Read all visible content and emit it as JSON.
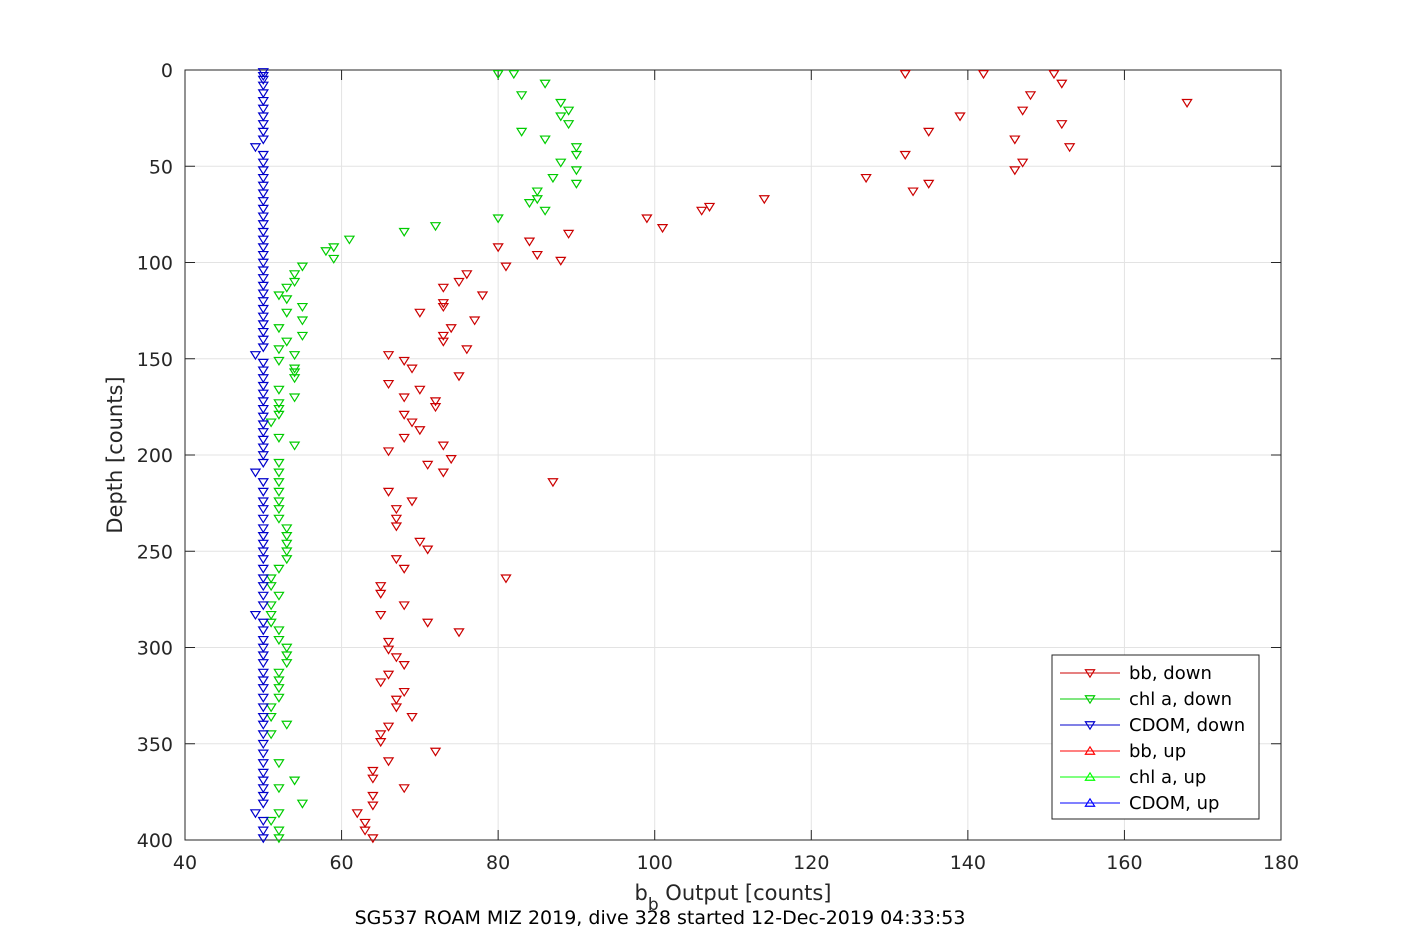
{
  "chart_data": {
    "type": "scatter",
    "xlabel_main": "b",
    "xlabel_sub": "b",
    "xlabel_rest": " Output [counts]",
    "ylabel": "Depth [counts]",
    "caption": "SG537 ROAM MIZ 2019, dive 328 started 12-Dec-2019 04:33:53",
    "xlim": [
      40,
      180
    ],
    "ylim": [
      0,
      400
    ],
    "y_reversed": true,
    "xticks": [
      40,
      60,
      80,
      100,
      120,
      140,
      160,
      180
    ],
    "yticks": [
      0,
      50,
      100,
      150,
      200,
      250,
      300,
      350,
      400
    ],
    "xtick_labels": [
      "40",
      "60",
      "80",
      "100",
      "120",
      "140",
      "160",
      "180"
    ],
    "ytick_labels": [
      "0",
      "50",
      "100",
      "150",
      "200",
      "250",
      "300",
      "350",
      "400"
    ],
    "grid": true,
    "legend_position": "bottom-right",
    "series": [
      {
        "name": "bb, down",
        "color": "#cc0000",
        "marker": "down-triangle",
        "points": [
          [
            132,
            2
          ],
          [
            142,
            2
          ],
          [
            151,
            2
          ],
          [
            152,
            7
          ],
          [
            148,
            13
          ],
          [
            168,
            17
          ],
          [
            147,
            21
          ],
          [
            139,
            24
          ],
          [
            152,
            28
          ],
          [
            135,
            32
          ],
          [
            146,
            36
          ],
          [
            153,
            40
          ],
          [
            132,
            44
          ],
          [
            147,
            48
          ],
          [
            146,
            52
          ],
          [
            127,
            56
          ],
          [
            135,
            59
          ],
          [
            133,
            63
          ],
          [
            114,
            67
          ],
          [
            107,
            71
          ],
          [
            106,
            73
          ],
          [
            99,
            77
          ],
          [
            101,
            82
          ],
          [
            89,
            85
          ],
          [
            84,
            89
          ],
          [
            80,
            92
          ],
          [
            85,
            96
          ],
          [
            88,
            99
          ],
          [
            81,
            102
          ],
          [
            76,
            106
          ],
          [
            75,
            110
          ],
          [
            73,
            113
          ],
          [
            78,
            117
          ],
          [
            73,
            121
          ],
          [
            73,
            123
          ],
          [
            70,
            126
          ],
          [
            77,
            130
          ],
          [
            74,
            134
          ],
          [
            73,
            138
          ],
          [
            73,
            141
          ],
          [
            76,
            145
          ],
          [
            66,
            148
          ],
          [
            68,
            151
          ],
          [
            69,
            155
          ],
          [
            75,
            159
          ],
          [
            66,
            163
          ],
          [
            70,
            166
          ],
          [
            68,
            170
          ],
          [
            72,
            172
          ],
          [
            72,
            175
          ],
          [
            68,
            179
          ],
          [
            69,
            183
          ],
          [
            70,
            187
          ],
          [
            68,
            191
          ],
          [
            73,
            195
          ],
          [
            66,
            198
          ],
          [
            74,
            202
          ],
          [
            71,
            205
          ],
          [
            73,
            209
          ],
          [
            87,
            214
          ],
          [
            66,
            219
          ],
          [
            69,
            224
          ],
          [
            67,
            228
          ],
          [
            67,
            233
          ],
          [
            67,
            237
          ],
          [
            70,
            245
          ],
          [
            71,
            249
          ],
          [
            67,
            254
          ],
          [
            68,
            259
          ],
          [
            81,
            264
          ],
          [
            65,
            268
          ],
          [
            65,
            272
          ],
          [
            68,
            278
          ],
          [
            65,
            283
          ],
          [
            71,
            287
          ],
          [
            75,
            292
          ],
          [
            66,
            297
          ],
          [
            66,
            301
          ],
          [
            67,
            305
          ],
          [
            68,
            309
          ],
          [
            66,
            314
          ],
          [
            65,
            318
          ],
          [
            68,
            323
          ],
          [
            67,
            327
          ],
          [
            67,
            331
          ],
          [
            69,
            336
          ],
          [
            66,
            341
          ],
          [
            65,
            345
          ],
          [
            65,
            349
          ],
          [
            72,
            354
          ],
          [
            66,
            359
          ],
          [
            64,
            364
          ],
          [
            64,
            368
          ],
          [
            68,
            373
          ],
          [
            64,
            377
          ],
          [
            64,
            382
          ],
          [
            62,
            386
          ],
          [
            63,
            391
          ],
          [
            63,
            395
          ],
          [
            64,
            399
          ]
        ]
      },
      {
        "name": "chl a, down",
        "color": "#00cc00",
        "marker": "down-triangle",
        "points": [
          [
            80,
            2
          ],
          [
            82,
            2
          ],
          [
            86,
            7
          ],
          [
            83,
            13
          ],
          [
            88,
            17
          ],
          [
            89,
            21
          ],
          [
            88,
            24
          ],
          [
            89,
            28
          ],
          [
            83,
            32
          ],
          [
            86,
            36
          ],
          [
            90,
            40
          ],
          [
            90,
            44
          ],
          [
            88,
            48
          ],
          [
            90,
            52
          ],
          [
            87,
            56
          ],
          [
            90,
            59
          ],
          [
            85,
            63
          ],
          [
            85,
            67
          ],
          [
            84,
            69
          ],
          [
            86,
            73
          ],
          [
            80,
            77
          ],
          [
            72,
            81
          ],
          [
            68,
            84
          ],
          [
            61,
            88
          ],
          [
            59,
            92
          ],
          [
            58,
            94
          ],
          [
            59,
            98
          ],
          [
            55,
            102
          ],
          [
            54,
            106
          ],
          [
            54,
            110
          ],
          [
            53,
            113
          ],
          [
            52,
            117
          ],
          [
            53,
            119
          ],
          [
            55,
            123
          ],
          [
            53,
            126
          ],
          [
            55,
            130
          ],
          [
            52,
            134
          ],
          [
            55,
            138
          ],
          [
            53,
            141
          ],
          [
            52,
            145
          ],
          [
            54,
            148
          ],
          [
            52,
            151
          ],
          [
            54,
            155
          ],
          [
            54,
            157
          ],
          [
            54,
            160
          ],
          [
            52,
            166
          ],
          [
            54,
            170
          ],
          [
            52,
            173
          ],
          [
            52,
            176
          ],
          [
            52,
            179
          ],
          [
            51,
            183
          ],
          [
            52,
            191
          ],
          [
            54,
            195
          ],
          [
            52,
            204
          ],
          [
            52,
            209
          ],
          [
            52,
            214
          ],
          [
            52,
            219
          ],
          [
            52,
            224
          ],
          [
            52,
            228
          ],
          [
            52,
            233
          ],
          [
            53,
            238
          ],
          [
            53,
            242
          ],
          [
            53,
            246
          ],
          [
            53,
            250
          ],
          [
            53,
            254
          ],
          [
            52,
            259
          ],
          [
            51,
            264
          ],
          [
            51,
            268
          ],
          [
            52,
            273
          ],
          [
            51,
            278
          ],
          [
            51,
            283
          ],
          [
            51,
            287
          ],
          [
            52,
            291
          ],
          [
            52,
            296
          ],
          [
            53,
            300
          ],
          [
            53,
            304
          ],
          [
            53,
            308
          ],
          [
            52,
            313
          ],
          [
            52,
            317
          ],
          [
            52,
            321
          ],
          [
            52,
            326
          ],
          [
            51,
            331
          ],
          [
            51,
            336
          ],
          [
            53,
            340
          ],
          [
            51,
            345
          ],
          [
            52,
            360
          ],
          [
            54,
            369
          ],
          [
            52,
            373
          ],
          [
            55,
            381
          ],
          [
            52,
            386
          ],
          [
            51,
            390
          ],
          [
            52,
            395
          ],
          [
            52,
            399
          ]
        ]
      },
      {
        "name": "CDOM, down",
        "color": "#0000cc",
        "marker": "down-triangle",
        "points": [
          [
            50,
            1
          ],
          [
            50,
            3
          ],
          [
            50,
            5
          ],
          [
            50,
            8
          ],
          [
            50,
            12
          ],
          [
            50,
            16
          ],
          [
            50,
            20
          ],
          [
            50,
            24
          ],
          [
            50,
            28
          ],
          [
            50,
            32
          ],
          [
            50,
            36
          ],
          [
            49,
            40
          ],
          [
            50,
            44
          ],
          [
            50,
            48
          ],
          [
            50,
            52
          ],
          [
            50,
            56
          ],
          [
            50,
            60
          ],
          [
            50,
            64
          ],
          [
            50,
            68
          ],
          [
            50,
            72
          ],
          [
            50,
            76
          ],
          [
            50,
            80
          ],
          [
            50,
            84
          ],
          [
            50,
            88
          ],
          [
            50,
            92
          ],
          [
            50,
            96
          ],
          [
            50,
            100
          ],
          [
            50,
            104
          ],
          [
            50,
            108
          ],
          [
            50,
            112
          ],
          [
            50,
            116
          ],
          [
            50,
            120
          ],
          [
            50,
            124
          ],
          [
            50,
            128
          ],
          [
            50,
            132
          ],
          [
            50,
            136
          ],
          [
            50,
            140
          ],
          [
            50,
            144
          ],
          [
            49,
            148
          ],
          [
            50,
            152
          ],
          [
            50,
            156
          ],
          [
            50,
            160
          ],
          [
            50,
            164
          ],
          [
            50,
            168
          ],
          [
            50,
            172
          ],
          [
            50,
            176
          ],
          [
            50,
            180
          ],
          [
            50,
            184
          ],
          [
            50,
            188
          ],
          [
            50,
            192
          ],
          [
            50,
            196
          ],
          [
            50,
            200
          ],
          [
            50,
            204
          ],
          [
            49,
            209
          ],
          [
            50,
            214
          ],
          [
            50,
            219
          ],
          [
            50,
            224
          ],
          [
            50,
            228
          ],
          [
            50,
            233
          ],
          [
            50,
            238
          ],
          [
            50,
            242
          ],
          [
            50,
            246
          ],
          [
            50,
            250
          ],
          [
            50,
            254
          ],
          [
            50,
            259
          ],
          [
            50,
            264
          ],
          [
            50,
            268
          ],
          [
            50,
            273
          ],
          [
            50,
            278
          ],
          [
            49,
            283
          ],
          [
            50,
            287
          ],
          [
            50,
            291
          ],
          [
            50,
            296
          ],
          [
            50,
            300
          ],
          [
            50,
            304
          ],
          [
            50,
            308
          ],
          [
            50,
            313
          ],
          [
            50,
            317
          ],
          [
            50,
            321
          ],
          [
            50,
            326
          ],
          [
            50,
            331
          ],
          [
            50,
            336
          ],
          [
            50,
            340
          ],
          [
            50,
            345
          ],
          [
            50,
            350
          ],
          [
            50,
            355
          ],
          [
            50,
            360
          ],
          [
            50,
            365
          ],
          [
            50,
            369
          ],
          [
            50,
            373
          ],
          [
            50,
            377
          ],
          [
            50,
            381
          ],
          [
            49,
            386
          ],
          [
            50,
            390
          ],
          [
            50,
            395
          ],
          [
            50,
            399
          ]
        ]
      },
      {
        "name": "bb, up",
        "color": "#ff0000",
        "marker": "up-triangle",
        "points": []
      },
      {
        "name": "chl a, up",
        "color": "#00ff00",
        "marker": "up-triangle",
        "points": []
      },
      {
        "name": "CDOM, up",
        "color": "#0000ff",
        "marker": "up-triangle",
        "points": []
      }
    ]
  }
}
